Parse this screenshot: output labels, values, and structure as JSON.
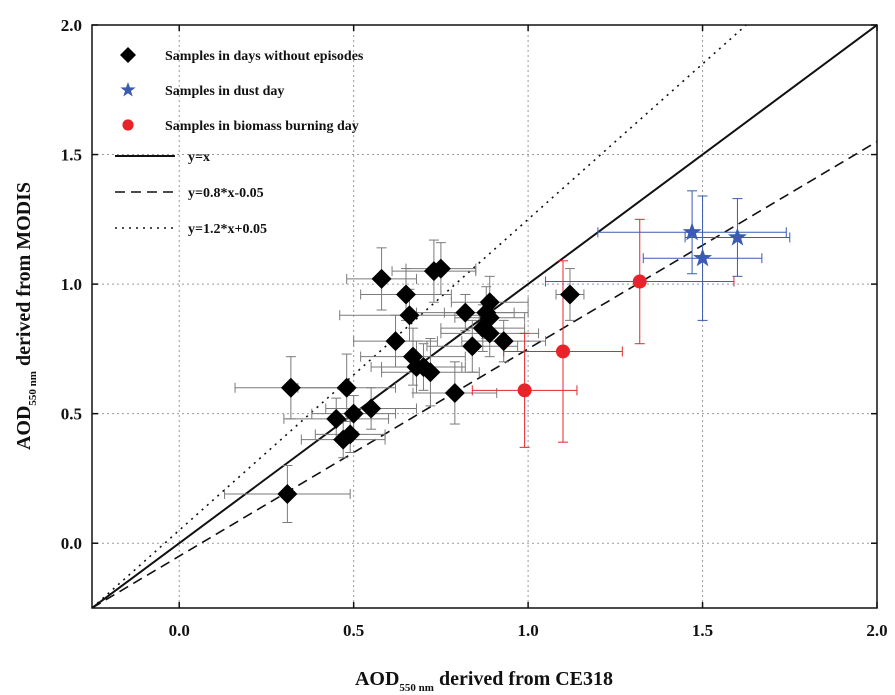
{
  "chart_data": {
    "type": "scatter",
    "title": "",
    "xlabel": {
      "main": "AOD",
      "sub": "550 nm",
      "rest": " derived from CE318"
    },
    "ylabel": {
      "main": "AOD",
      "sub": "550 nm",
      "rest": " derived from MODIS"
    },
    "xlim": [
      -0.25,
      2.0
    ],
    "ylim": [
      -0.25,
      2.0
    ],
    "xticks": [
      0.0,
      0.5,
      1.0,
      1.5,
      2.0
    ],
    "yticks": [
      0.0,
      0.5,
      1.0,
      1.5,
      2.0
    ],
    "xtick_labels": [
      "0.0",
      "0.5",
      "1.0",
      "1.5",
      "2.0"
    ],
    "ytick_labels": [
      "0.0",
      "0.5",
      "1.0",
      "1.5",
      "2.0"
    ],
    "grid": true,
    "legend_position": "top-left",
    "series": [
      {
        "name": "Samples in days without episodes",
        "marker": "diamond",
        "color": "#000000",
        "points": [
          {
            "x": 0.31,
            "y": 0.19,
            "xerr": 0.18,
            "yerr": 0.11
          },
          {
            "x": 0.32,
            "y": 0.6,
            "xerr": 0.16,
            "yerr": 0.12
          },
          {
            "x": 0.45,
            "y": 0.48,
            "xerr": 0.15,
            "yerr": 0.08
          },
          {
            "x": 0.48,
            "y": 0.6,
            "xerr": 0.14,
            "yerr": 0.13
          },
          {
            "x": 0.47,
            "y": 0.4,
            "xerr": 0.12,
            "yerr": 0.07
          },
          {
            "x": 0.49,
            "y": 0.42,
            "xerr": 0.1,
            "yerr": 0.07
          },
          {
            "x": 0.5,
            "y": 0.5,
            "xerr": 0.12,
            "yerr": 0.07
          },
          {
            "x": 0.55,
            "y": 0.52,
            "xerr": 0.13,
            "yerr": 0.08
          },
          {
            "x": 0.58,
            "y": 1.02,
            "xerr": 0.1,
            "yerr": 0.12
          },
          {
            "x": 0.62,
            "y": 0.78,
            "xerr": 0.12,
            "yerr": 0.1
          },
          {
            "x": 0.65,
            "y": 0.96,
            "xerr": 0.13,
            "yerr": 0.1
          },
          {
            "x": 0.66,
            "y": 0.88,
            "xerr": 0.2,
            "yerr": 0.1
          },
          {
            "x": 0.67,
            "y": 0.72,
            "xerr": 0.15,
            "yerr": 0.11
          },
          {
            "x": 0.68,
            "y": 0.68,
            "xerr": 0.13,
            "yerr": 0.1
          },
          {
            "x": 0.7,
            "y": 0.68,
            "xerr": 0.12,
            "yerr": 0.09
          },
          {
            "x": 0.72,
            "y": 0.66,
            "xerr": 0.14,
            "yerr": 0.13
          },
          {
            "x": 0.73,
            "y": 1.05,
            "xerr": 0.12,
            "yerr": 0.12
          },
          {
            "x": 0.75,
            "y": 1.06,
            "xerr": 0.1,
            "yerr": 0.1
          },
          {
            "x": 0.79,
            "y": 0.58,
            "xerr": 0.12,
            "yerr": 0.12
          },
          {
            "x": 0.82,
            "y": 0.89,
            "xerr": 0.14,
            "yerr": 0.07
          },
          {
            "x": 0.84,
            "y": 0.76,
            "xerr": 0.13,
            "yerr": 0.1
          },
          {
            "x": 0.87,
            "y": 0.83,
            "xerr": 0.12,
            "yerr": 0.09
          },
          {
            "x": 0.88,
            "y": 0.89,
            "xerr": 0.12,
            "yerr": 0.1
          },
          {
            "x": 0.89,
            "y": 0.93,
            "xerr": 0.11,
            "yerr": 0.1
          },
          {
            "x": 0.89,
            "y": 0.87,
            "xerr": 0.1,
            "yerr": 0.08
          },
          {
            "x": 0.89,
            "y": 0.81,
            "xerr": 0.14,
            "yerr": 0.09
          },
          {
            "x": 0.93,
            "y": 0.78,
            "xerr": 0.12,
            "yerr": 0.08
          },
          {
            "x": 1.12,
            "y": 0.96,
            "xerr": 0.04,
            "yerr": 0.1
          }
        ]
      },
      {
        "name": "Samples in dust day",
        "marker": "star",
        "color": "#3a5bb0",
        "points": [
          {
            "x": 1.47,
            "y": 1.2,
            "xerr": 0.27,
            "yerr": 0.16
          },
          {
            "x": 1.5,
            "y": 1.1,
            "xerr": 0.17,
            "yerr": 0.24
          },
          {
            "x": 1.6,
            "y": 1.18,
            "xerr": 0.15,
            "yerr": 0.15
          }
        ]
      },
      {
        "name": "Samples in biomass burning day",
        "marker": "circle",
        "color": "#e8242a",
        "points": [
          {
            "x": 0.99,
            "y": 0.59,
            "xerr": 0.15,
            "yerr": 0.22
          },
          {
            "x": 1.1,
            "y": 0.74,
            "xerr": 0.17,
            "yerr": 0.35
          },
          {
            "x": 1.32,
            "y": 1.01,
            "xerr": 0.27,
            "yerr": 0.24
          }
        ]
      }
    ],
    "lines": [
      {
        "name": "y=x",
        "slope": 1.0,
        "intercept": 0.0,
        "style": "solid"
      },
      {
        "name": "y=0.8*x-0.05",
        "slope": 0.8,
        "intercept": -0.05,
        "style": "dashed"
      },
      {
        "name": "y=1.2*x+0.05",
        "slope": 1.2,
        "intercept": 0.05,
        "style": "dotted"
      }
    ]
  }
}
